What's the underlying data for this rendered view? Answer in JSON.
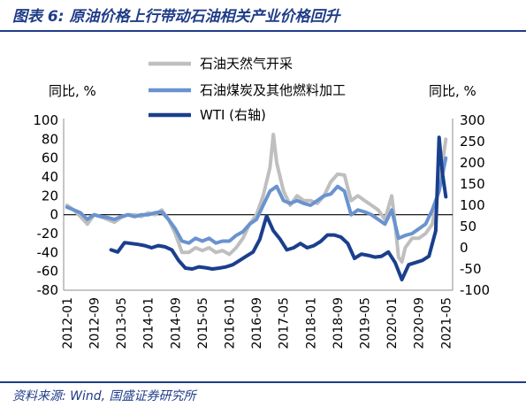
{
  "header": {
    "title": "图表 6: 原油价格上行带动石油相关产业价格回升"
  },
  "footer": {
    "source": "资料来源: Wind, 国盛证券研究所"
  },
  "chart_data": {
    "type": "line",
    "title": "",
    "ylabel": "同比, %",
    "y2label": "同比, %",
    "ylim": [
      -80,
      100
    ],
    "y2lim": [
      -100,
      300
    ],
    "yticks": [
      "100",
      "80",
      "60",
      "40",
      "20",
      "0",
      "-20",
      "-40",
      "-60",
      "-80"
    ],
    "y2ticks": [
      "300",
      "250",
      "200",
      "150",
      "100",
      "50",
      "0",
      "-50",
      "-100"
    ],
    "xticks": [
      "2012-01",
      "2012-09",
      "2013-05",
      "2014-01",
      "2014-09",
      "2015-05",
      "2016-01",
      "2016-09",
      "2017-05",
      "2018-01",
      "2018-09",
      "2019-05",
      "2020-01",
      "2020-09",
      "2021-05"
    ],
    "legend_position": "top-center",
    "series": [
      {
        "name": "石油天然气开采",
        "axis": "left",
        "color": "#bfbfbf",
        "x": [
          "2012-01",
          "2012-03",
          "2012-05",
          "2012-07",
          "2012-09",
          "2012-11",
          "2013-01",
          "2013-03",
          "2013-05",
          "2013-07",
          "2013-09",
          "2013-11",
          "2014-01",
          "2014-03",
          "2014-05",
          "2014-07",
          "2014-09",
          "2014-11",
          "2015-01",
          "2015-03",
          "2015-05",
          "2015-07",
          "2015-09",
          "2015-11",
          "2016-01",
          "2016-03",
          "2016-05",
          "2016-07",
          "2016-09",
          "2016-11",
          "2017-01",
          "2017-02",
          "2017-03",
          "2017-05",
          "2017-07",
          "2017-09",
          "2017-11",
          "2018-01",
          "2018-03",
          "2018-05",
          "2018-07",
          "2018-09",
          "2018-11",
          "2019-01",
          "2019-03",
          "2019-05",
          "2019-07",
          "2019-09",
          "2019-11",
          "2020-01",
          "2020-02",
          "2020-03",
          "2020-04",
          "2020-05",
          "2020-07",
          "2020-09",
          "2020-11",
          "2021-01",
          "2021-03",
          "2021-05"
        ],
        "values": [
          10,
          5,
          -2,
          -10,
          0,
          -2,
          -5,
          -8,
          -3,
          0,
          0,
          -2,
          2,
          0,
          5,
          -5,
          -20,
          -40,
          -40,
          -35,
          -38,
          -35,
          -40,
          -38,
          -42,
          -35,
          -25,
          -10,
          0,
          20,
          50,
          85,
          55,
          25,
          10,
          20,
          15,
          15,
          12,
          20,
          35,
          43,
          42,
          15,
          20,
          15,
          10,
          5,
          -5,
          20,
          -10,
          -45,
          -50,
          -35,
          -25,
          -25,
          -20,
          -10,
          30,
          80
        ]
      },
      {
        "name": "石油煤炭及其他燃料加工",
        "axis": "left",
        "color": "#6a93cf",
        "x": [
          "2012-01",
          "2012-03",
          "2012-05",
          "2012-07",
          "2012-09",
          "2012-11",
          "2013-01",
          "2013-03",
          "2013-05",
          "2013-07",
          "2013-09",
          "2013-11",
          "2014-01",
          "2014-03",
          "2014-05",
          "2014-07",
          "2014-09",
          "2014-11",
          "2015-01",
          "2015-03",
          "2015-05",
          "2015-07",
          "2015-09",
          "2015-11",
          "2016-01",
          "2016-03",
          "2016-05",
          "2016-07",
          "2016-09",
          "2016-11",
          "2017-01",
          "2017-03",
          "2017-05",
          "2017-07",
          "2017-09",
          "2017-11",
          "2018-01",
          "2018-03",
          "2018-05",
          "2018-07",
          "2018-09",
          "2018-11",
          "2019-01",
          "2019-03",
          "2019-05",
          "2019-07",
          "2019-09",
          "2019-11",
          "2020-01",
          "2020-03",
          "2020-05",
          "2020-07",
          "2020-09",
          "2020-11",
          "2021-01",
          "2021-03",
          "2021-05"
        ],
        "values": [
          8,
          5,
          2,
          -5,
          0,
          -2,
          -3,
          -5,
          -2,
          0,
          -2,
          0,
          0,
          2,
          3,
          -5,
          -15,
          -28,
          -30,
          -25,
          -28,
          -25,
          -30,
          -28,
          -28,
          -22,
          -18,
          -10,
          -5,
          10,
          25,
          30,
          15,
          12,
          15,
          12,
          10,
          15,
          20,
          22,
          30,
          25,
          0,
          5,
          3,
          0,
          -5,
          -10,
          5,
          -25,
          -22,
          -20,
          -15,
          -10,
          5,
          25,
          60
        ]
      },
      {
        "name": "WTI (右轴)",
        "axis": "right",
        "color": "#1a3f8c",
        "x": [
          "2013-02",
          "2013-04",
          "2013-06",
          "2013-08",
          "2013-10",
          "2013-12",
          "2014-02",
          "2014-04",
          "2014-06",
          "2014-08",
          "2014-10",
          "2014-12",
          "2015-02",
          "2015-04",
          "2015-06",
          "2015-08",
          "2015-10",
          "2015-12",
          "2016-02",
          "2016-04",
          "2016-06",
          "2016-08",
          "2016-10",
          "2016-12",
          "2017-02",
          "2017-04",
          "2017-06",
          "2017-08",
          "2017-10",
          "2017-12",
          "2018-02",
          "2018-04",
          "2018-06",
          "2018-08",
          "2018-10",
          "2018-12",
          "2019-02",
          "2019-04",
          "2019-06",
          "2019-08",
          "2019-10",
          "2019-12",
          "2020-02",
          "2020-04",
          "2020-06",
          "2020-08",
          "2020-10",
          "2020-12",
          "2021-02",
          "2021-03",
          "2021-04",
          "2021-05"
        ],
        "values": [
          -5,
          -10,
          12,
          10,
          8,
          5,
          0,
          5,
          2,
          -5,
          -30,
          -48,
          -50,
          -45,
          -47,
          -50,
          -48,
          -45,
          -40,
          -30,
          -20,
          -10,
          20,
          75,
          40,
          20,
          -5,
          0,
          10,
          0,
          5,
          15,
          30,
          30,
          25,
          10,
          -25,
          -15,
          -18,
          -22,
          -20,
          -10,
          -35,
          -75,
          -40,
          -35,
          -30,
          -20,
          40,
          260,
          175,
          120
        ]
      }
    ]
  }
}
